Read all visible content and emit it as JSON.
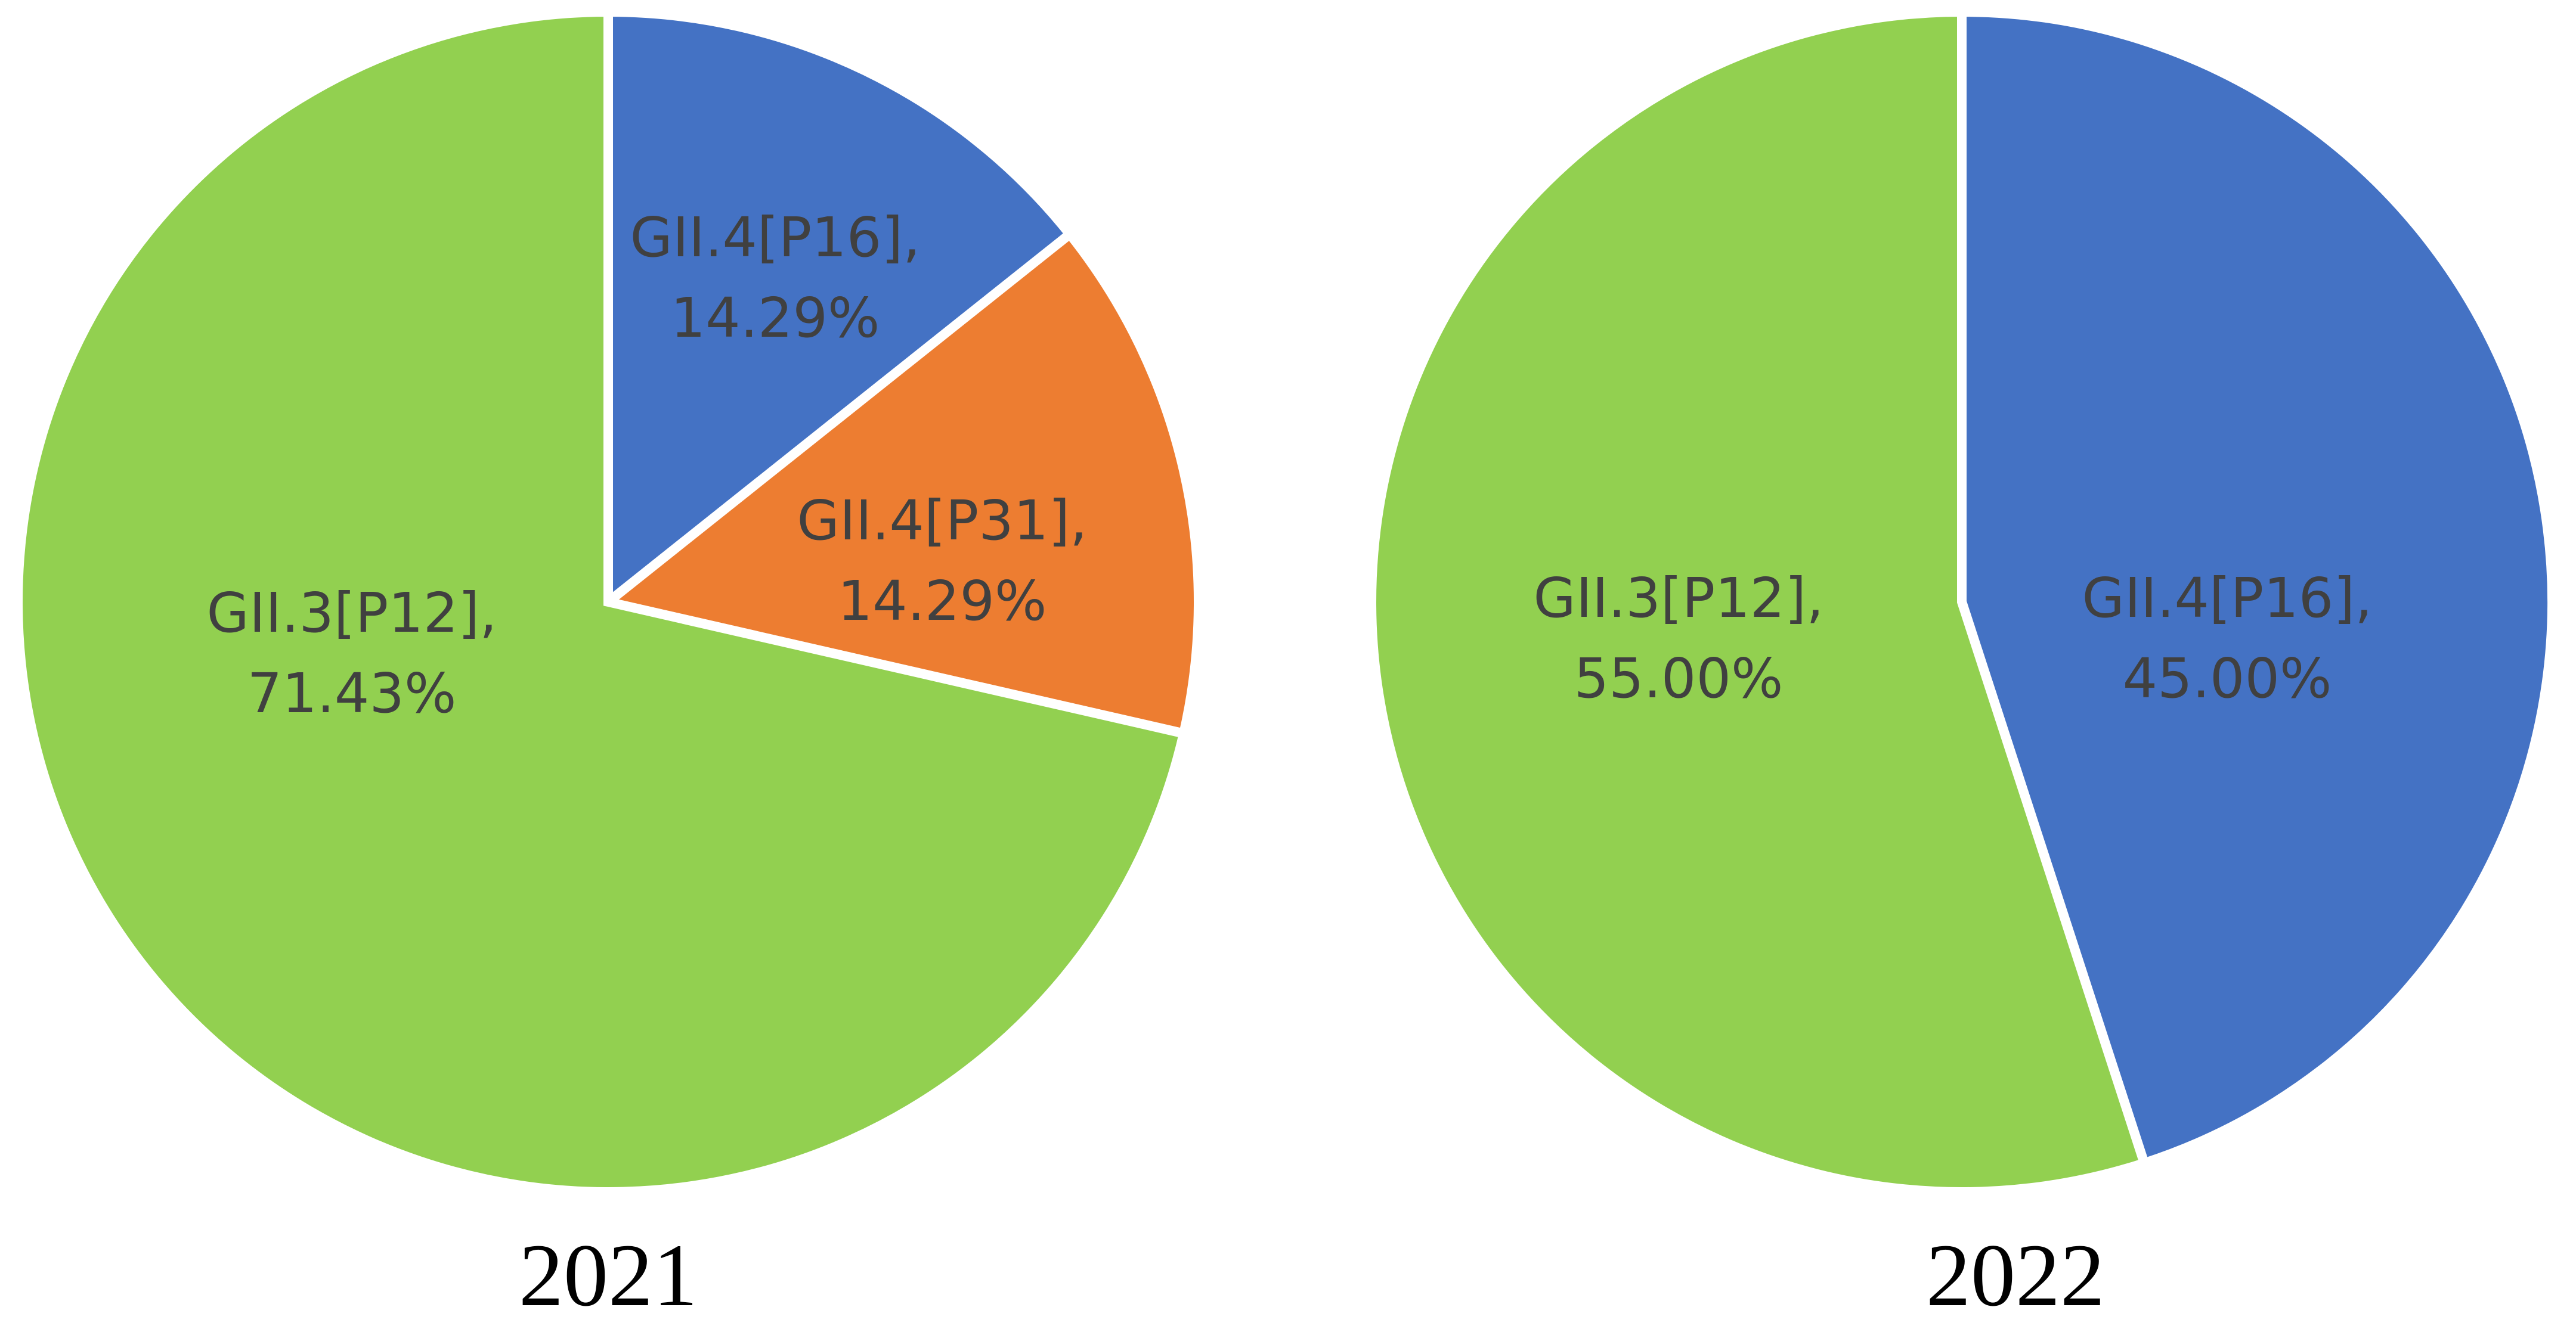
{
  "chart_data": [
    {
      "type": "pie",
      "title": "2021",
      "slices": [
        {
          "label": "GII.4[P16]",
          "value": 14.29,
          "display": "14.29%",
          "color": "#4472C4"
        },
        {
          "label": "GII.4[P31]",
          "value": 14.29,
          "display": "14.29%",
          "color": "#ED7D31"
        },
        {
          "label": "GII.3[P12]",
          "value": 71.43,
          "display": "71.43%",
          "color": "#92D050"
        }
      ]
    },
    {
      "type": "pie",
      "title": "2022",
      "slices": [
        {
          "label": "GII.4[P16]",
          "value": 45.0,
          "display": "45.00%",
          "color": "#4472C4"
        },
        {
          "label": "GII.3[P12]",
          "value": 55.0,
          "display": "55.00%",
          "color": "#92D050"
        }
      ]
    }
  ]
}
